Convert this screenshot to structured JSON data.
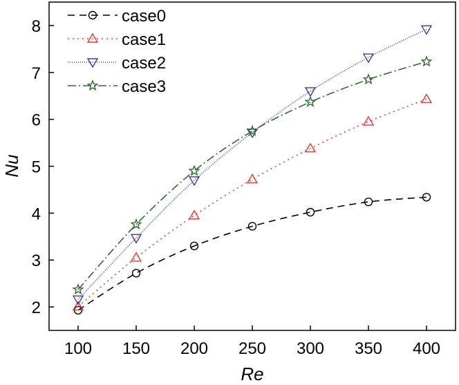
{
  "chart_data": {
    "type": "line",
    "xlabel": "Re",
    "ylabel": "Nu",
    "xlim": [
      75,
      425
    ],
    "ylim": [
      1.5,
      8.5
    ],
    "xticks": [
      100,
      150,
      200,
      250,
      300,
      350,
      400
    ],
    "yticks": [
      2,
      3,
      4,
      5,
      6,
      7,
      8
    ],
    "grid": false,
    "legend_position": "top-left",
    "x": [
      100,
      150,
      200,
      250,
      300,
      350,
      400
    ],
    "series": [
      {
        "name": "case0",
        "color": "#000000",
        "marker": "circle",
        "dash": "10,7",
        "values": [
          1.93,
          2.72,
          3.3,
          3.72,
          4.02,
          4.24,
          4.34
        ]
      },
      {
        "name": "case1",
        "color": "#e8392d",
        "marker": "triangle-up",
        "dash": "2,5",
        "values": [
          2.01,
          3.05,
          3.95,
          4.72,
          5.38,
          5.95,
          6.43
        ]
      },
      {
        "name": "case2",
        "color": "#3a3a9e",
        "marker": "triangle-down",
        "dash": "1,2",
        "values": [
          2.16,
          3.47,
          4.7,
          5.72,
          6.6,
          7.32,
          7.92
        ]
      },
      {
        "name": "case3",
        "color": "#2e6b2e",
        "marker": "star",
        "dash": "12,4,2,4",
        "values": [
          2.37,
          3.76,
          4.9,
          5.75,
          6.37,
          6.85,
          7.23
        ]
      }
    ]
  }
}
